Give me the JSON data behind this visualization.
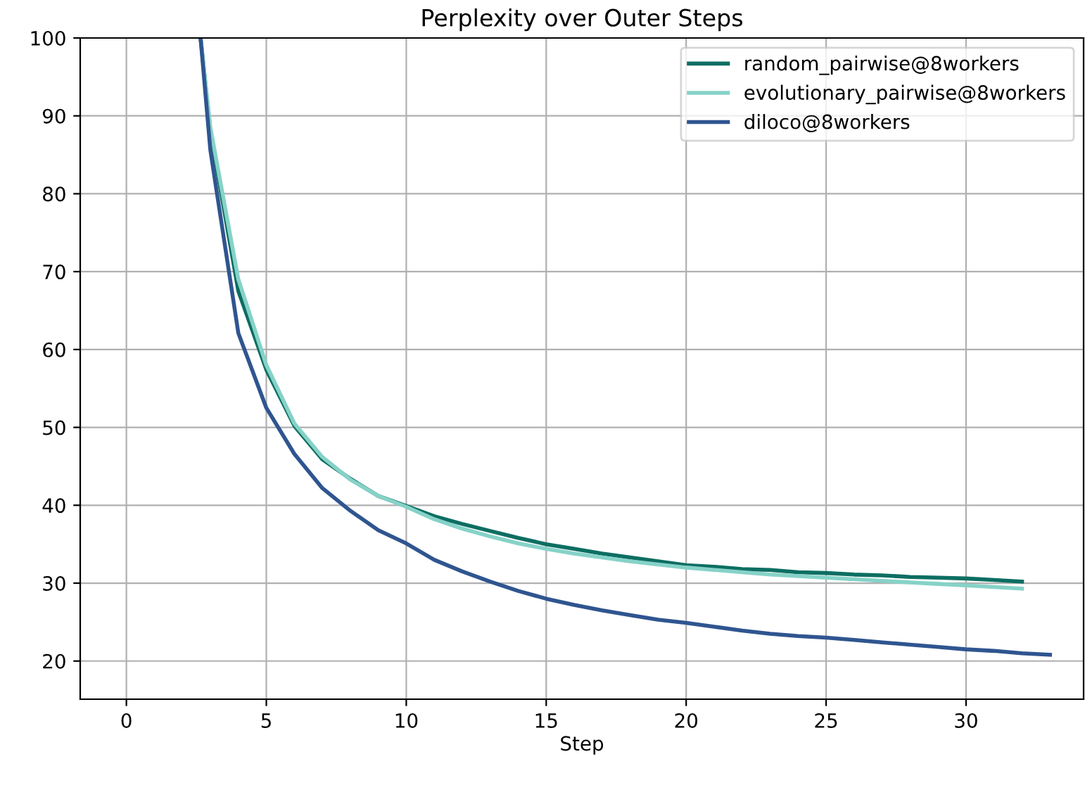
{
  "chart_data": {
    "type": "line",
    "title": "Perplexity over Outer Steps",
    "xlabel": "Step",
    "xlim": [
      -1.65,
      34.2
    ],
    "ylim": [
      15.1,
      100
    ],
    "xticks": [
      0,
      5,
      10,
      15,
      20,
      25,
      30
    ],
    "yticks": [
      20,
      30,
      40,
      50,
      60,
      70,
      80,
      90,
      100
    ],
    "grid": true,
    "legend": "top right",
    "series": [
      {
        "name": "random_pairwise@8workers",
        "color": "#0d6e62",
        "x": [
          2.65,
          3,
          4,
          5,
          6,
          7,
          8,
          9,
          10,
          11,
          12,
          13,
          14,
          15,
          16,
          17,
          18,
          19,
          20,
          21,
          22,
          23,
          24,
          25,
          26,
          27,
          28,
          29,
          30,
          31,
          32
        ],
        "values": [
          100,
          88,
          67.5,
          57.4,
          50.2,
          45.9,
          43.4,
          41.2,
          39.9,
          38.6,
          37.6,
          36.7,
          35.8,
          35.0,
          34.4,
          33.8,
          33.3,
          32.8,
          32.3,
          32.1,
          31.8,
          31.7,
          31.4,
          31.3,
          31.1,
          31.0,
          30.8,
          30.7,
          30.6,
          30.4,
          30.2
        ]
      },
      {
        "name": "evolutionary_pairwise@8workers",
        "color": "#86d2c8",
        "x": [
          2.65,
          3,
          4,
          5,
          6,
          7,
          8,
          9,
          10,
          11,
          12,
          13,
          14,
          15,
          16,
          17,
          18,
          19,
          20,
          21,
          22,
          23,
          24,
          25,
          26,
          27,
          28,
          29,
          30,
          31,
          32
        ],
        "values": [
          100,
          88.5,
          69,
          58,
          50.5,
          46.2,
          43.3,
          41.2,
          39.8,
          38.2,
          37.0,
          36.0,
          35.1,
          34.4,
          33.8,
          33.3,
          32.8,
          32.4,
          32.0,
          31.7,
          31.4,
          31.1,
          30.9,
          30.7,
          30.5,
          30.3,
          30.1,
          29.9,
          29.7,
          29.5,
          29.3
        ]
      },
      {
        "name": "diloco@8workers",
        "color": "#2f5590",
        "x": [
          2.65,
          3,
          4,
          5,
          6,
          7,
          8,
          9,
          10,
          11,
          12,
          13,
          14,
          15,
          16,
          17,
          18,
          19,
          20,
          21,
          22,
          23,
          24,
          25,
          26,
          27,
          28,
          29,
          30,
          31,
          32,
          33
        ],
        "values": [
          100,
          85.6,
          62.1,
          52.5,
          46.6,
          42.2,
          39.3,
          36.8,
          35.1,
          33.0,
          31.5,
          30.2,
          29.0,
          28.0,
          27.2,
          26.5,
          25.9,
          25.3,
          24.9,
          24.4,
          23.9,
          23.5,
          23.2,
          23.0,
          22.7,
          22.4,
          22.1,
          21.8,
          21.5,
          21.3,
          21.0,
          20.8
        ]
      }
    ]
  }
}
